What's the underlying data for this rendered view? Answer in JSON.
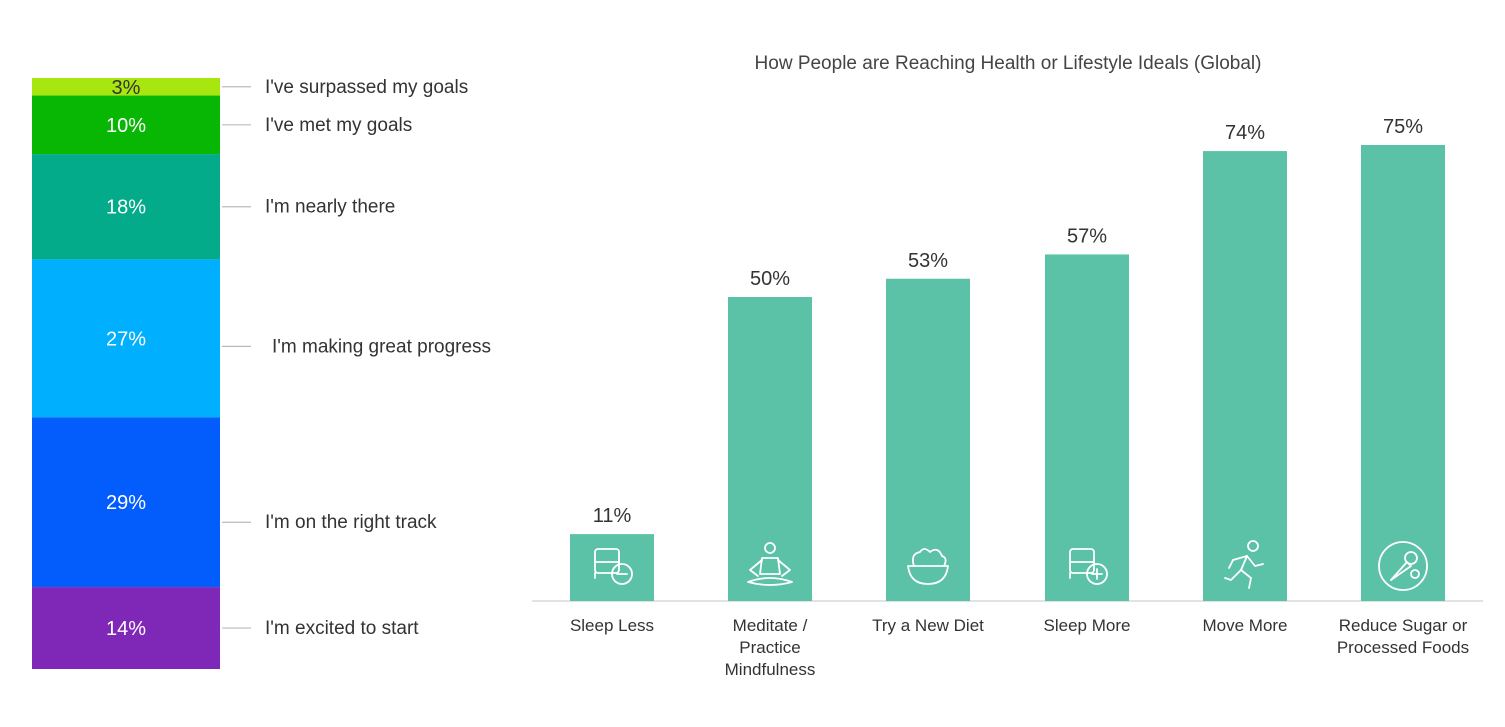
{
  "chart_data": [
    {
      "type": "stacked-bar",
      "title": "",
      "segments": [
        {
          "value": 3,
          "label": "3%",
          "legend": "I've surpassed my goals",
          "color": "#a8e60f"
        },
        {
          "value": 10,
          "label": "10%",
          "legend": "I've met my goals",
          "color": "#07b704"
        },
        {
          "value": 18,
          "label": "18%",
          "legend": "I'm nearly there",
          "color": "#03ab8b"
        },
        {
          "value": 27,
          "label": "27%",
          "legend": "I'm making great progress",
          "color": "#00b0ff"
        },
        {
          "value": 29,
          "label": "29%",
          "legend": "I'm on the right track",
          "color": "#035cfc"
        },
        {
          "value": 14,
          "label": "14%",
          "legend": "I'm excited to start",
          "color": "#7f28b7"
        }
      ]
    },
    {
      "type": "bar",
      "title": "How People are Reaching Health or Lifestyle Ideals (Global)",
      "ylim": [
        0,
        80
      ],
      "bar_color": "#5bc2a7",
      "categories": [
        {
          "lines": [
            "Sleep Less"
          ],
          "icon": "sleep-less-icon"
        },
        {
          "lines": [
            "Meditate /",
            "Practice",
            "Mindfulness"
          ],
          "icon": "meditate-icon"
        },
        {
          "lines": [
            "Try a New Diet"
          ],
          "icon": "salad-bowl-icon"
        },
        {
          "lines": [
            "Sleep More"
          ],
          "icon": "sleep-more-icon"
        },
        {
          "lines": [
            "Move More"
          ],
          "icon": "running-person-icon"
        },
        {
          "lines": [
            "Reduce Sugar or",
            "Processed Foods"
          ],
          "icon": "vegetables-plate-icon"
        }
      ],
      "values": [
        11,
        50,
        53,
        57,
        74,
        75
      ],
      "value_labels": [
        "11%",
        "50%",
        "53%",
        "57%",
        "74%",
        "75%"
      ]
    }
  ]
}
